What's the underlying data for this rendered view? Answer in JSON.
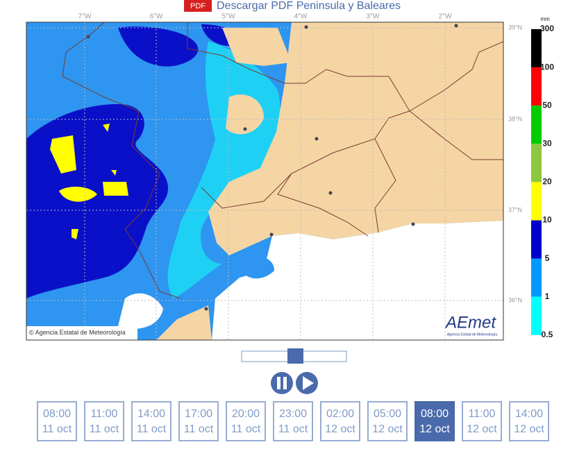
{
  "header": {
    "badge": "PDF",
    "title": "Descargar PDF Peninsula y Baleares"
  },
  "map": {
    "longitudes": [
      "7°W",
      "6°W",
      "5°W",
      "4°W",
      "3°W",
      "2°W"
    ],
    "latitudes": [
      "39°N",
      "38°N",
      "37°N",
      "36°N"
    ],
    "credit": "Agencia Estatal de Meteorología",
    "logo": {
      "name": "AEmet",
      "subtitle": "Agencia Estatal de Meteorología"
    }
  },
  "legend": {
    "unit": "mm",
    "labels": [
      "300",
      "100",
      "50",
      "30",
      "20",
      "10",
      "5",
      "1",
      "0.5"
    ],
    "colors": [
      "#000000",
      "#ff0000",
      "#00cc00",
      "#8dc63f",
      "#ffff00",
      "#0000cc",
      "#0099ff",
      "#00ffff"
    ]
  },
  "controls": {
    "selected": 8,
    "timesteps": [
      {
        "time": "08:00",
        "date": "11 oct"
      },
      {
        "time": "11:00",
        "date": "11 oct"
      },
      {
        "time": "14:00",
        "date": "11 oct"
      },
      {
        "time": "17:00",
        "date": "11 oct"
      },
      {
        "time": "20:00",
        "date": "11 oct"
      },
      {
        "time": "23:00",
        "date": "11 oct"
      },
      {
        "time": "02:00",
        "date": "12 oct"
      },
      {
        "time": "05:00",
        "date": "12 oct"
      },
      {
        "time": "08:00",
        "date": "12 oct"
      },
      {
        "time": "11:00",
        "date": "12 oct"
      },
      {
        "time": "14:00",
        "date": "12 oct"
      }
    ]
  }
}
